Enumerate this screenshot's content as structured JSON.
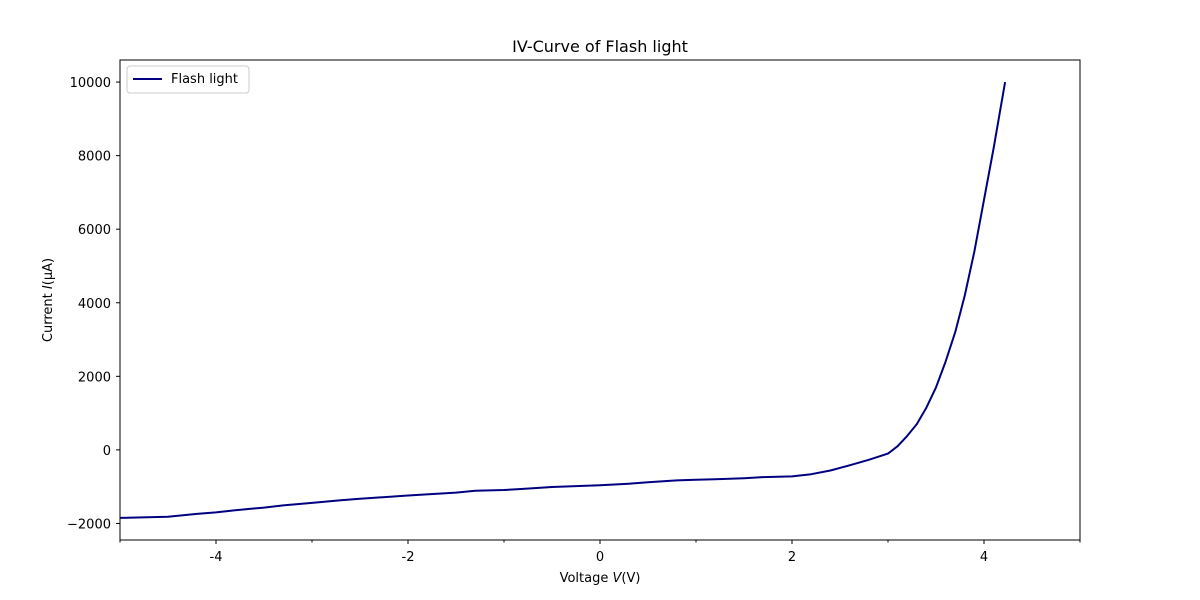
{
  "chart_data": {
    "type": "line",
    "title": "IV-Curve of Flash light",
    "xlabel_prefix": "Voltage ",
    "xlabel_var": "V",
    "xlabel_unit": "(V)",
    "ylabel_prefix": "Current ",
    "ylabel_var": "I",
    "ylabel_unit": "(μA)",
    "xlim": [
      -5,
      5
    ],
    "ylim": [
      -2450,
      10600
    ],
    "x_ticks": [
      -4,
      -2,
      0,
      2,
      4
    ],
    "x_tick_labels": [
      "-4",
      "-2",
      "0",
      "2",
      "4"
    ],
    "x_minor_ticks": [
      -5,
      -3,
      -1,
      1,
      3,
      5
    ],
    "y_ticks": [
      -2000,
      0,
      2000,
      4000,
      6000,
      8000,
      10000
    ],
    "y_tick_labels": [
      "−2000",
      "0",
      "2000",
      "4000",
      "6000",
      "8000",
      "10000"
    ],
    "grid": false,
    "legend_position": "top-left",
    "series": [
      {
        "name": "Flash light",
        "color": "#000080",
        "x": [
          -5.0,
          -4.5,
          -4.2,
          -4.0,
          -3.8,
          -3.5,
          -3.3,
          -3.0,
          -2.7,
          -2.5,
          -2.0,
          -1.5,
          -1.3,
          -1.0,
          -0.8,
          -0.5,
          0.0,
          0.3,
          0.5,
          0.8,
          1.0,
          1.2,
          1.5,
          1.7,
          2.0,
          2.2,
          2.4,
          2.6,
          2.8,
          3.0,
          3.1,
          3.2,
          3.3,
          3.4,
          3.5,
          3.6,
          3.7,
          3.8,
          3.9,
          4.0,
          4.1,
          4.22
        ],
        "y": [
          -1850,
          -1820,
          -1740,
          -1700,
          -1640,
          -1570,
          -1510,
          -1440,
          -1370,
          -1330,
          -1240,
          -1160,
          -1110,
          -1090,
          -1060,
          -1010,
          -960,
          -920,
          -880,
          -830,
          -810,
          -800,
          -770,
          -740,
          -720,
          -660,
          -560,
          -420,
          -270,
          -100,
          100,
          380,
          700,
          1150,
          1700,
          2400,
          3200,
          4200,
          5400,
          6800,
          8200,
          10000
        ]
      }
    ]
  }
}
